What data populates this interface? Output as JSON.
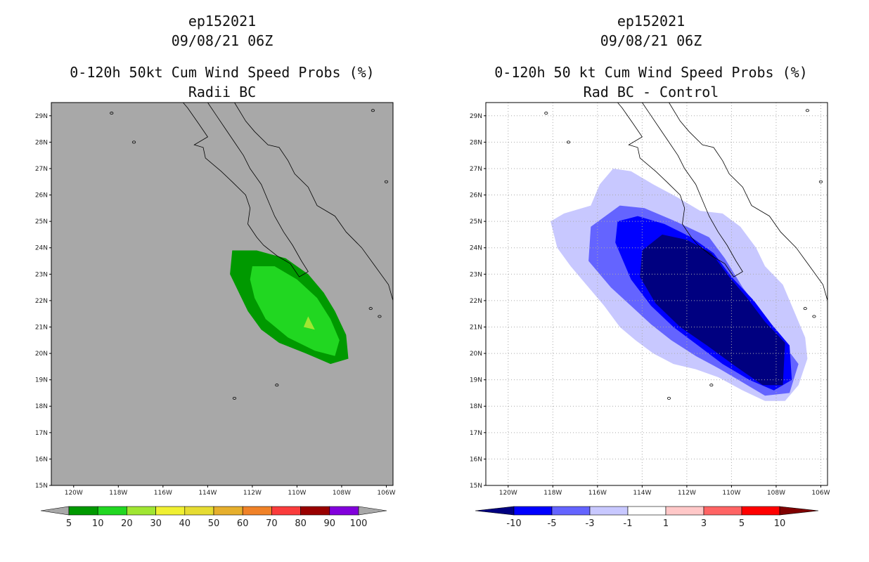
{
  "chart_data": [
    {
      "type": "heatmap",
      "panel": "left",
      "title_lines": [
        "ep152021",
        "09/08/21 06Z",
        "0-120h 50kt Cum Wind Speed Probs (%)",
        "Radii BC"
      ],
      "xlabel": "",
      "ylabel": "",
      "xlim": [
        -121,
        -105.7
      ],
      "ylim": [
        15,
        29.5
      ],
      "x_ticks": [
        "120W",
        "118W",
        "116W",
        "114W",
        "112W",
        "110W",
        "108W",
        "106W"
      ],
      "y_ticks": [
        "29N",
        "28N",
        "27N",
        "26N",
        "25N",
        "24N",
        "23N",
        "22N",
        "21N",
        "20N",
        "19N",
        "18N",
        "17N",
        "16N",
        "15N"
      ],
      "background": "#a8a8a8",
      "grid": false,
      "colorbar": {
        "labels": [
          "5",
          "10",
          "20",
          "30",
          "40",
          "50",
          "60",
          "70",
          "80",
          "90",
          "100"
        ],
        "colors": [
          "#009900",
          "#21d721",
          "#a0e632",
          "#f0f032",
          "#e6dc32",
          "#e6af2d",
          "#f08228",
          "#fa3c3c",
          "#990000",
          "#8200dc"
        ]
      },
      "filled_regions": [
        {
          "level": "5-10",
          "color": "#009900",
          "lonlat": [
            [
              -112.9,
              23.9
            ],
            [
              -111.8,
              23.9
            ],
            [
              -110.5,
              23.6
            ],
            [
              -109.5,
              23.0
            ],
            [
              -108.8,
              22.3
            ],
            [
              -108.3,
              21.6
            ],
            [
              -107.8,
              20.7
            ],
            [
              -107.7,
              19.8
            ],
            [
              -108.5,
              19.6
            ],
            [
              -109.6,
              20.0
            ],
            [
              -110.8,
              20.4
            ],
            [
              -111.6,
              20.9
            ],
            [
              -112.2,
              21.6
            ],
            [
              -112.6,
              22.3
            ],
            [
              -113.0,
              23.0
            ],
            [
              -112.9,
              23.9
            ]
          ]
        },
        {
          "level": "10-20",
          "color": "#21d721",
          "lonlat": [
            [
              -112.0,
              23.3
            ],
            [
              -111.0,
              23.3
            ],
            [
              -110.0,
              22.8
            ],
            [
              -109.1,
              22.1
            ],
            [
              -108.5,
              21.3
            ],
            [
              -108.1,
              20.5
            ],
            [
              -108.3,
              19.9
            ],
            [
              -109.2,
              20.1
            ],
            [
              -110.4,
              20.6
            ],
            [
              -111.4,
              21.3
            ],
            [
              -111.9,
              22.1
            ],
            [
              -112.1,
              22.8
            ],
            [
              -112.0,
              23.3
            ]
          ]
        },
        {
          "level": "20-30",
          "color": "#a0e632",
          "lonlat": [
            [
              -109.5,
              21.4
            ],
            [
              -109.2,
              20.9
            ],
            [
              -109.7,
              21.0
            ],
            [
              -109.5,
              21.4
            ]
          ]
        }
      ]
    },
    {
      "type": "heatmap",
      "panel": "right",
      "title_lines": [
        "ep152021",
        "09/08/21 06Z",
        "0-120h 50 kt Cum Wind Speed Probs (%)",
        "Rad BC - Control"
      ],
      "xlabel": "",
      "ylabel": "",
      "xlim": [
        -121,
        -105.7
      ],
      "ylim": [
        15,
        29.5
      ],
      "x_ticks": [
        "120W",
        "118W",
        "116W",
        "114W",
        "112W",
        "110W",
        "108W",
        "106W"
      ],
      "y_ticks": [
        "29N",
        "28N",
        "27N",
        "26N",
        "25N",
        "24N",
        "23N",
        "22N",
        "21N",
        "20N",
        "19N",
        "18N",
        "17N",
        "16N",
        "15N"
      ],
      "background": "#ffffff",
      "grid": true,
      "colorbar": {
        "labels": [
          "-10",
          "-5",
          "-3",
          "-1",
          "1",
          "3",
          "5",
          "10"
        ],
        "colors": [
          "#000080",
          "#0000ff",
          "#6464ff",
          "#c8c8ff",
          "#ffffff",
          "#ffc8c8",
          "#ff6464",
          "#ff0000",
          "#800000"
        ]
      },
      "filled_regions": [
        {
          "level": "-3 to -1",
          "color": "#c8c8ff",
          "lonlat": [
            [
              -118.1,
              25.0
            ],
            [
              -117.5,
              25.3
            ],
            [
              -116.3,
              25.6
            ],
            [
              -115.9,
              26.4
            ],
            [
              -115.3,
              27.0
            ],
            [
              -114.5,
              26.9
            ],
            [
              -113.5,
              26.4
            ],
            [
              -112.4,
              25.9
            ],
            [
              -111.4,
              25.4
            ],
            [
              -110.4,
              25.3
            ],
            [
              -109.6,
              24.8
            ],
            [
              -108.9,
              24.0
            ],
            [
              -108.5,
              23.3
            ],
            [
              -107.7,
              22.6
            ],
            [
              -107.2,
              21.6
            ],
            [
              -106.7,
              20.6
            ],
            [
              -106.6,
              19.8
            ],
            [
              -107.0,
              18.8
            ],
            [
              -107.6,
              18.2
            ],
            [
              -108.5,
              18.2
            ],
            [
              -109.5,
              18.6
            ],
            [
              -110.6,
              19.1
            ],
            [
              -111.6,
              19.4
            ],
            [
              -112.6,
              19.6
            ],
            [
              -113.5,
              20.0
            ],
            [
              -114.3,
              20.5
            ],
            [
              -115.0,
              21.0
            ],
            [
              -115.7,
              21.8
            ],
            [
              -116.5,
              22.6
            ],
            [
              -117.2,
              23.3
            ],
            [
              -117.8,
              24.0
            ],
            [
              -118.1,
              25.0
            ]
          ]
        },
        {
          "level": "-5 to -3",
          "color": "#6464ff",
          "lonlat": [
            [
              -116.4,
              23.5
            ],
            [
              -116.3,
              24.8
            ],
            [
              -115.0,
              25.6
            ],
            [
              -113.9,
              25.5
            ],
            [
              -112.5,
              25.0
            ],
            [
              -111.0,
              24.4
            ],
            [
              -110.3,
              23.6
            ],
            [
              -109.5,
              22.5
            ],
            [
              -108.6,
              21.5
            ],
            [
              -107.8,
              20.5
            ],
            [
              -107.0,
              19.6
            ],
            [
              -107.4,
              18.5
            ],
            [
              -108.5,
              18.4
            ],
            [
              -109.5,
              18.9
            ],
            [
              -110.5,
              19.4
            ],
            [
              -111.6,
              19.9
            ],
            [
              -112.7,
              20.5
            ],
            [
              -113.6,
              21.1
            ],
            [
              -114.5,
              21.8
            ],
            [
              -115.4,
              22.5
            ],
            [
              -116.4,
              23.5
            ]
          ]
        },
        {
          "level": "-10 to -5",
          "color": "#0000ff",
          "lonlat": [
            [
              -115.2,
              24.2
            ],
            [
              -115.1,
              25.0
            ],
            [
              -114.2,
              25.2
            ],
            [
              -113.0,
              24.9
            ],
            [
              -111.8,
              24.4
            ],
            [
              -110.8,
              23.8
            ],
            [
              -110.0,
              22.9
            ],
            [
              -109.0,
              22.0
            ],
            [
              -108.2,
              21.1
            ],
            [
              -107.4,
              20.3
            ],
            [
              -107.3,
              19.0
            ],
            [
              -108.1,
              18.6
            ],
            [
              -109.2,
              19.0
            ],
            [
              -110.4,
              19.6
            ],
            [
              -111.5,
              20.3
            ],
            [
              -112.6,
              21.0
            ],
            [
              -113.6,
              21.8
            ],
            [
              -114.5,
              22.8
            ],
            [
              -115.2,
              24.2
            ]
          ]
        },
        {
          "level": "< -10",
          "color": "#000080",
          "lonlat": [
            [
              -114.1,
              22.9
            ],
            [
              -114.0,
              23.9
            ],
            [
              -113.1,
              24.5
            ],
            [
              -112.0,
              24.3
            ],
            [
              -110.9,
              23.8
            ],
            [
              -110.1,
              22.9
            ],
            [
              -109.3,
              22.1
            ],
            [
              -108.5,
              21.2
            ],
            [
              -107.6,
              20.4
            ],
            [
              -107.7,
              18.8
            ],
            [
              -108.6,
              18.8
            ],
            [
              -109.8,
              19.5
            ],
            [
              -111.1,
              20.3
            ],
            [
              -112.3,
              21.0
            ],
            [
              -113.4,
              21.9
            ],
            [
              -114.1,
              22.9
            ]
          ]
        }
      ]
    }
  ]
}
